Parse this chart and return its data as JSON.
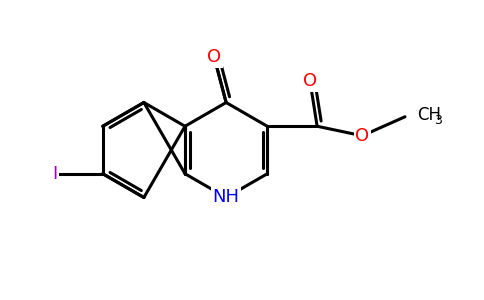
{
  "background_color": "#ffffff",
  "bond_color": "#000000",
  "bond_width": 2.2,
  "atom_colors": {
    "O": "#ff0000",
    "N": "#0000ff",
    "I": "#9900cc",
    "C": "#000000"
  },
  "font_size_atoms": 13,
  "figsize": [
    4.84,
    3.0
  ],
  "dpi": 100
}
